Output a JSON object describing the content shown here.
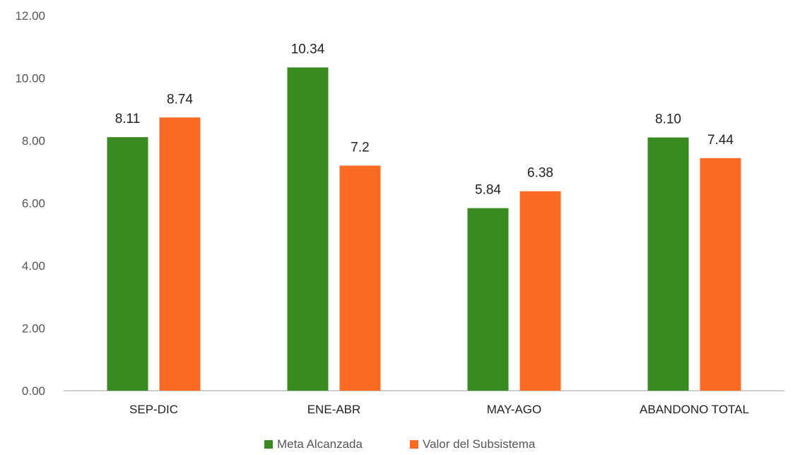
{
  "chart_data": {
    "type": "bar",
    "categories": [
      "SEP-DIC",
      "ENE-ABR",
      "MAY-AGO",
      "ABANDONO TOTAL"
    ],
    "series": [
      {
        "name": "Meta Alcanzada",
        "values": [
          8.11,
          10.34,
          5.84,
          8.1
        ],
        "labels": [
          "8.11",
          "10.34",
          "5.84",
          "8.10"
        ],
        "color": "#3a8a22"
      },
      {
        "name": "Valor del Subsistema",
        "values": [
          8.74,
          7.2,
          6.38,
          7.44
        ],
        "labels": [
          "8.74",
          "7.2",
          "6.38",
          "7.44"
        ],
        "color": "#fb6a22"
      }
    ],
    "ylim": [
      0,
      12
    ],
    "yticks": [
      "0.00",
      "2.00",
      "4.00",
      "6.00",
      "8.00",
      "10.00",
      "12.00"
    ],
    "grid": false,
    "legend": "bottom"
  }
}
